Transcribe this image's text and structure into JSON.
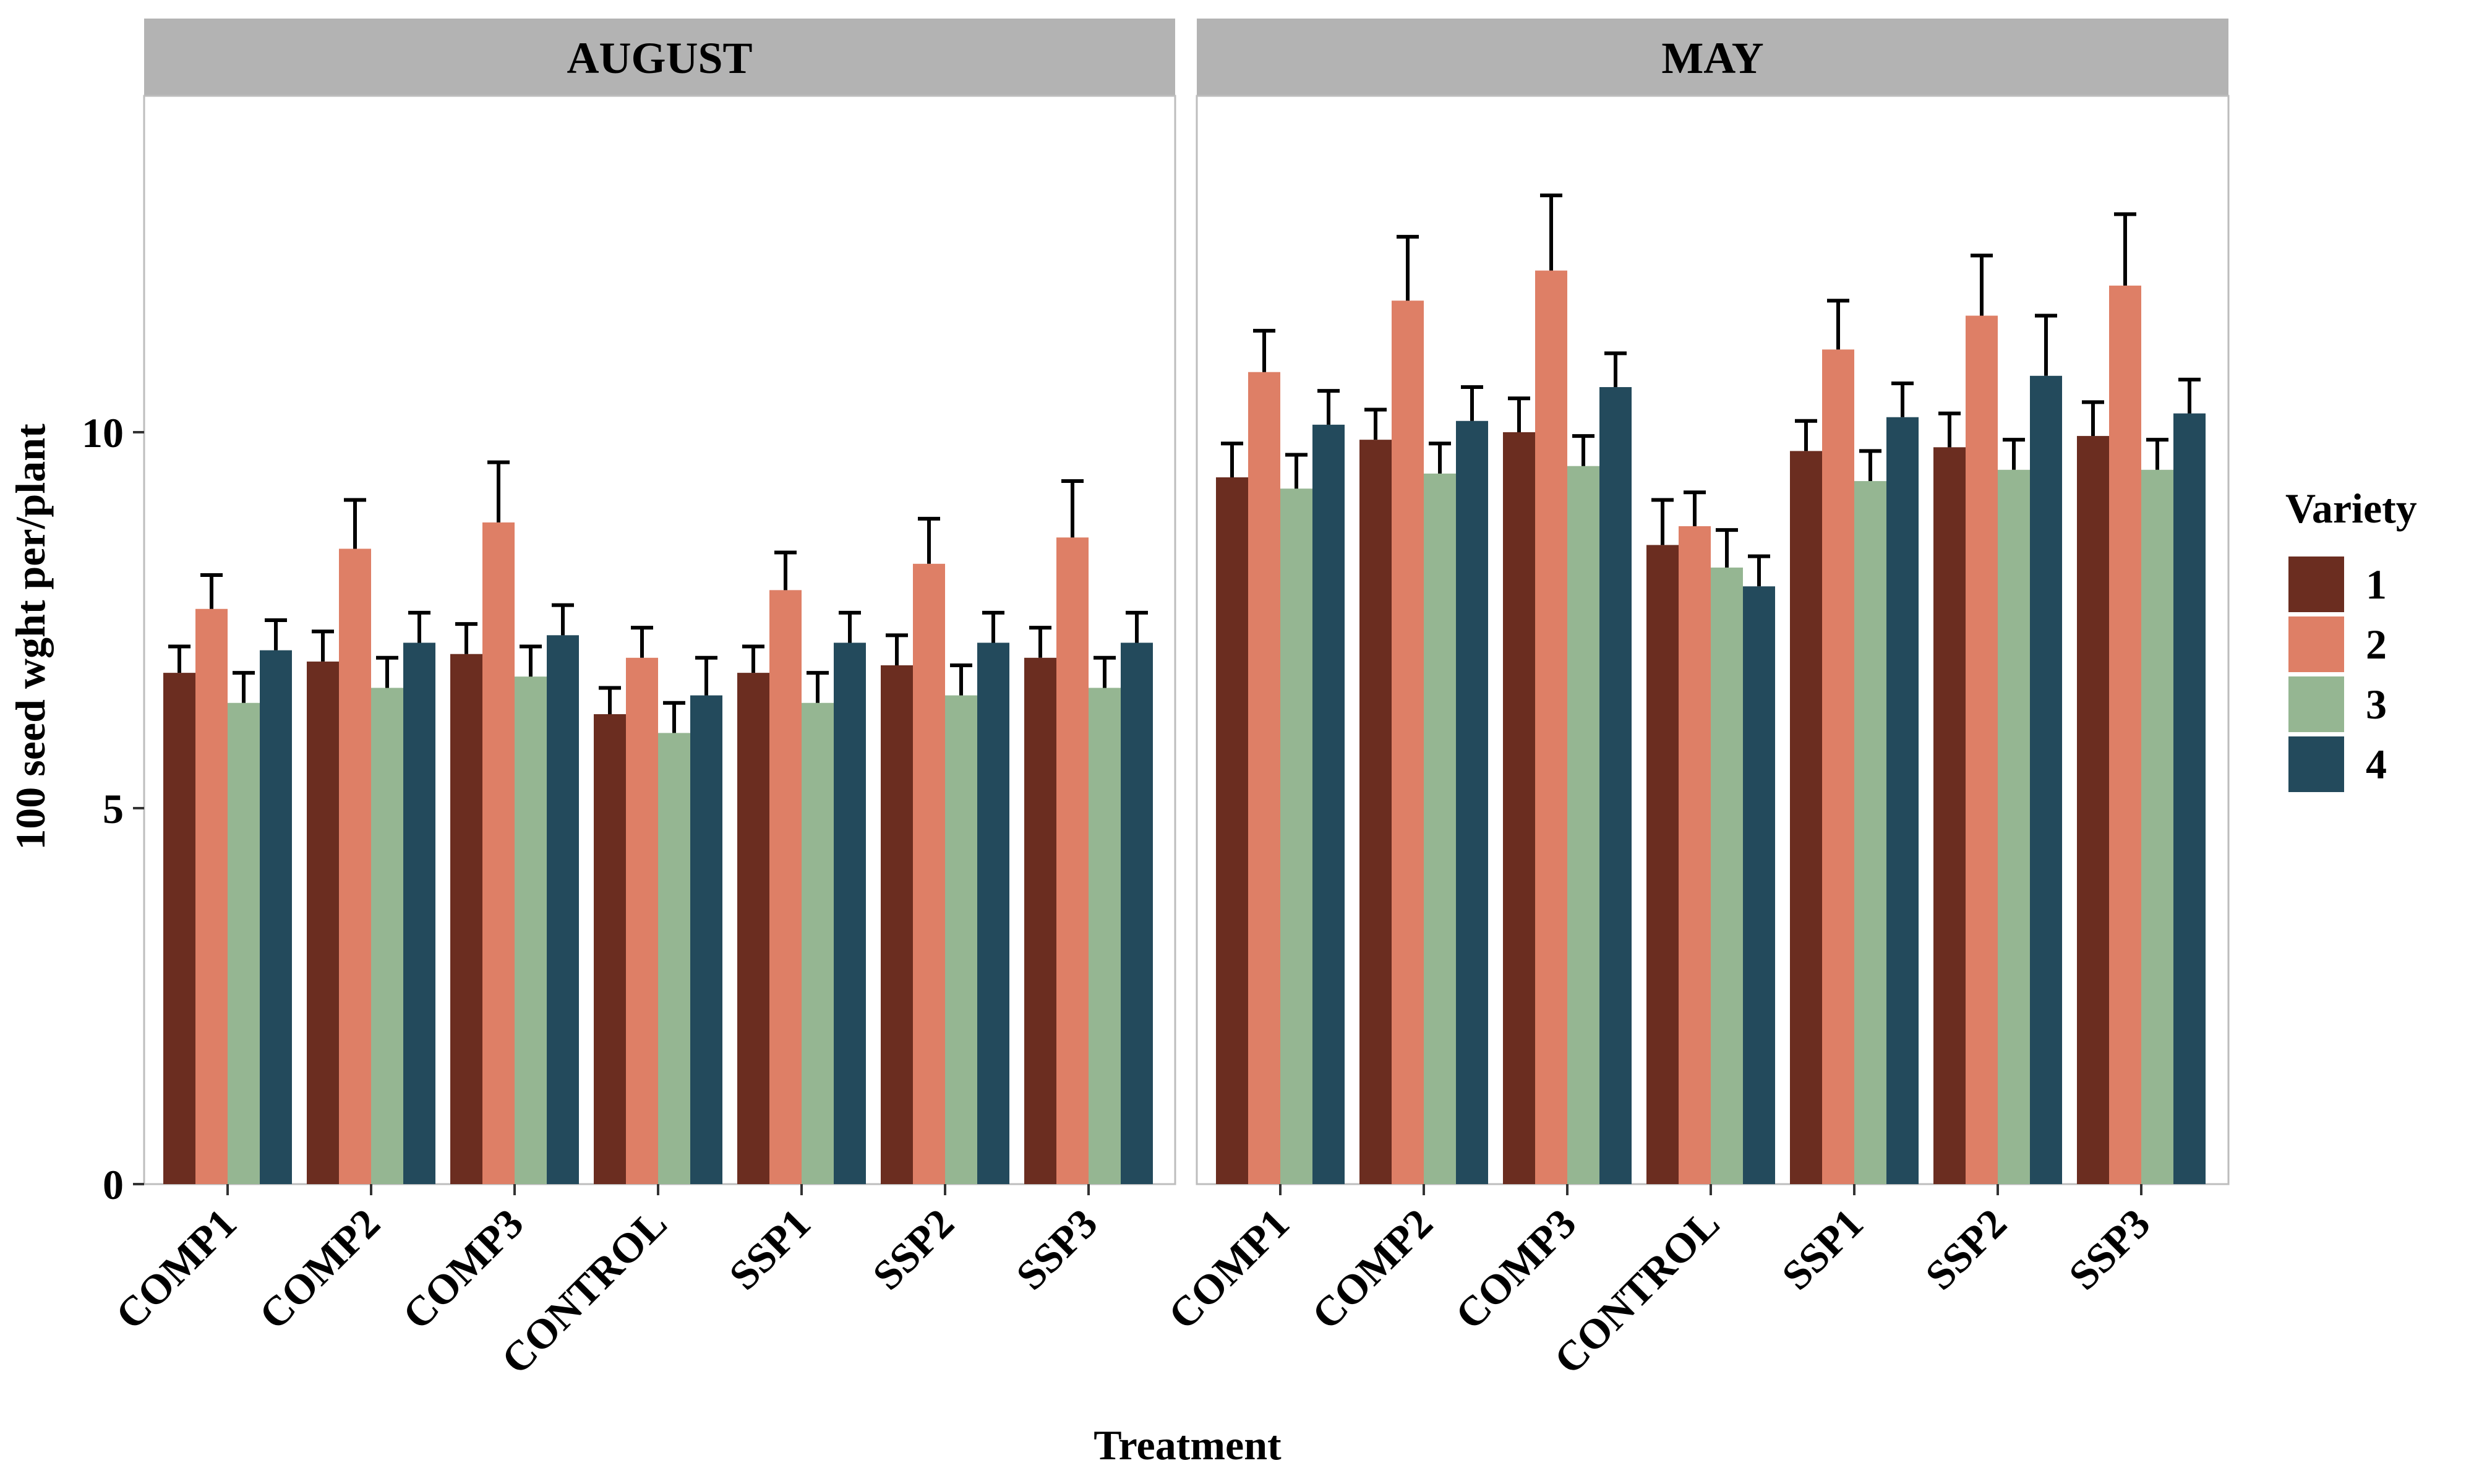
{
  "chart_data": {
    "type": "bar",
    "xlabel": "Treatment",
    "ylabel": "100 seed wght per/plant",
    "ylim": [
      0,
      14.5
    ],
    "yticks": [
      0,
      5,
      10
    ],
    "grid": false,
    "legend_position": "right",
    "legend": {
      "title": "Variety",
      "entries": [
        {
          "label": "1",
          "color": "#6b2d20"
        },
        {
          "label": "2",
          "color": "#de7f66"
        },
        {
          "label": "3",
          "color": "#95b692"
        },
        {
          "label": "4",
          "color": "#234a5c"
        }
      ]
    },
    "categories": [
      "COMP1",
      "COMP2",
      "COMP3",
      "CONTROL",
      "SSP1",
      "SSP2",
      "SSP3"
    ],
    "panels": [
      {
        "title": "AUGUST",
        "series": [
          {
            "name": "1",
            "values": [
              6.8,
              6.95,
              7.05,
              6.25,
              6.8,
              6.9,
              7.0
            ],
            "errors": [
              0.35,
              0.4,
              0.4,
              0.35,
              0.35,
              0.4,
              0.4
            ]
          },
          {
            "name": "2",
            "values": [
              7.65,
              8.45,
              8.8,
              7.0,
              7.9,
              8.25,
              8.6
            ],
            "errors": [
              0.45,
              0.65,
              0.8,
              0.4,
              0.5,
              0.6,
              0.75
            ]
          },
          {
            "name": "3",
            "values": [
              6.4,
              6.6,
              6.75,
              6.0,
              6.4,
              6.5,
              6.6
            ],
            "errors": [
              0.4,
              0.4,
              0.4,
              0.4,
              0.4,
              0.4,
              0.4
            ]
          },
          {
            "name": "4",
            "values": [
              7.1,
              7.2,
              7.3,
              6.5,
              7.2,
              7.2,
              7.2
            ],
            "errors": [
              0.4,
              0.4,
              0.4,
              0.5,
              0.4,
              0.4,
              0.4
            ]
          }
        ]
      },
      {
        "title": "MAY",
        "series": [
          {
            "name": "1",
            "values": [
              9.4,
              9.9,
              10.0,
              8.5,
              9.75,
              9.8,
              9.95
            ],
            "errors": [
              0.45,
              0.4,
              0.45,
              0.6,
              0.4,
              0.45,
              0.45
            ]
          },
          {
            "name": "2",
            "values": [
              10.8,
              11.75,
              12.15,
              8.75,
              11.1,
              11.55,
              11.95
            ],
            "errors": [
              0.55,
              0.85,
              1.0,
              0.45,
              0.65,
              0.8,
              0.95
            ]
          },
          {
            "name": "3",
            "values": [
              9.25,
              9.45,
              9.55,
              8.2,
              9.35,
              9.5,
              9.5
            ],
            "errors": [
              0.45,
              0.4,
              0.4,
              0.5,
              0.4,
              0.4,
              0.4
            ]
          },
          {
            "name": "4",
            "values": [
              10.1,
              10.15,
              10.6,
              7.95,
              10.2,
              10.75,
              10.25
            ],
            "errors": [
              0.45,
              0.45,
              0.45,
              0.4,
              0.45,
              0.8,
              0.45
            ]
          }
        ]
      }
    ]
  }
}
